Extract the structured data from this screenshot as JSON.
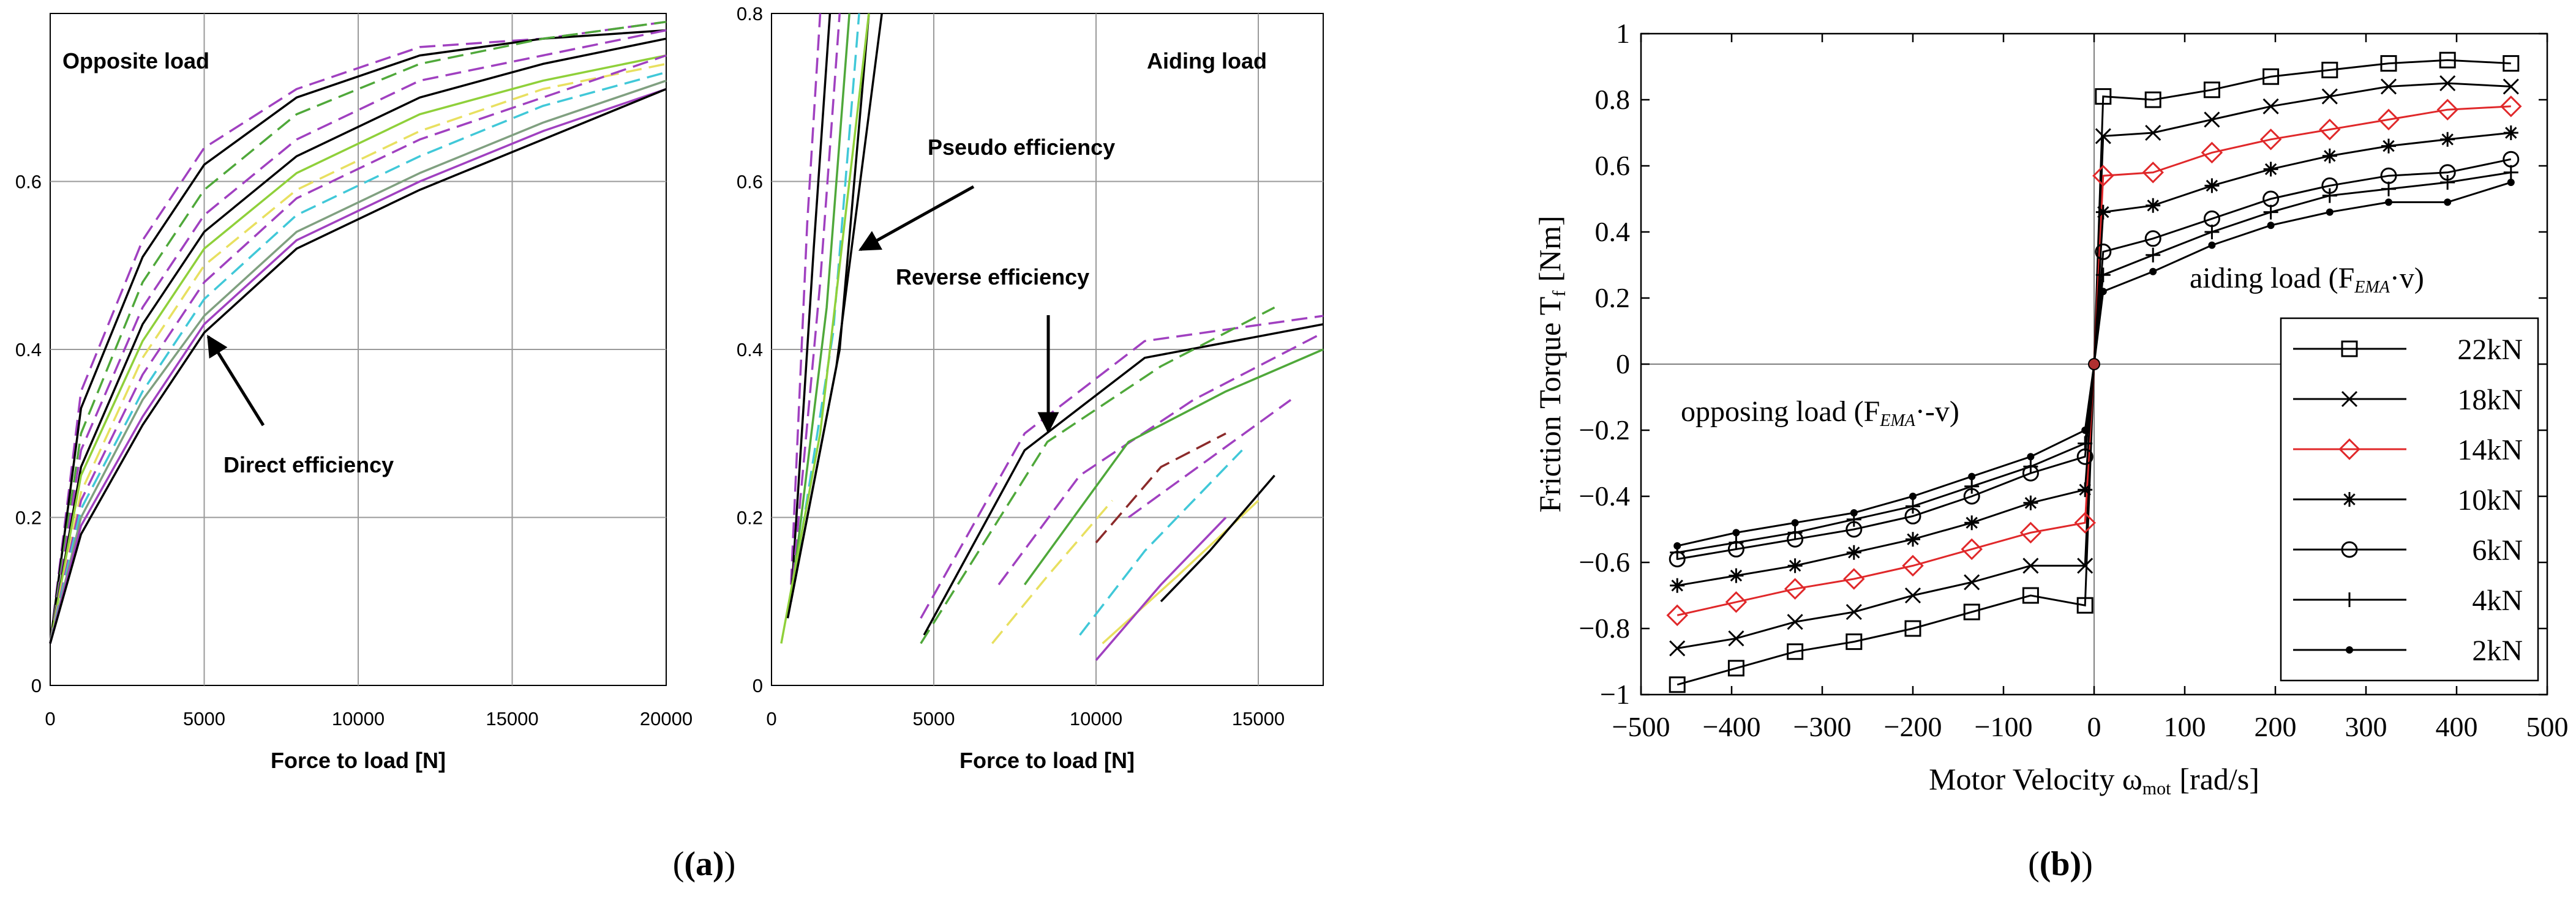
{
  "chart_data": [
    {
      "id": "a_left",
      "type": "line",
      "title": "Opposite load",
      "xlabel": "Force to load [N]",
      "ylabel": "",
      "xlim": [
        0,
        20000
      ],
      "ylim": [
        0,
        0.8
      ],
      "xticks": [
        0,
        5000,
        10000,
        15000,
        20000
      ],
      "xtick_labels": [
        "0",
        "5000",
        "10000",
        "15000",
        "20000"
      ],
      "yticks": [
        0,
        0.2,
        0.4,
        0.6
      ],
      "ytick_labels": [
        "0",
        "0.2",
        "0.4",
        "0.6"
      ],
      "grid": true,
      "annotations": [
        {
          "text": "Direct efficiency",
          "x": 5000,
          "y": 0.42
        }
      ],
      "series": [
        {
          "color": "#a040c0",
          "dash": "dashed",
          "x": [
            0,
            1000,
            3000,
            5000,
            8000,
            12000,
            16000,
            20000
          ],
          "y": [
            0.05,
            0.35,
            0.53,
            0.64,
            0.71,
            0.76,
            0.77,
            0.79
          ]
        },
        {
          "color": "#000000",
          "dash": "solid",
          "x": [
            0,
            1000,
            3000,
            5000,
            8000,
            12000,
            16000,
            20000
          ],
          "y": [
            0.05,
            0.33,
            0.51,
            0.62,
            0.7,
            0.75,
            0.77,
            0.78
          ]
        },
        {
          "color": "#4fa83a",
          "dash": "dashed",
          "x": [
            0,
            1000,
            3000,
            5000,
            8000,
            12000,
            16000,
            20000
          ],
          "y": [
            0.05,
            0.3,
            0.48,
            0.59,
            0.68,
            0.74,
            0.77,
            0.79
          ]
        },
        {
          "color": "#a040c0",
          "dash": "dashed",
          "x": [
            0,
            1000,
            3000,
            5000,
            8000,
            12000,
            16000,
            20000
          ],
          "y": [
            0.05,
            0.28,
            0.45,
            0.56,
            0.65,
            0.72,
            0.75,
            0.78
          ]
        },
        {
          "color": "#000000",
          "dash": "solid",
          "x": [
            0,
            1000,
            3000,
            5000,
            8000,
            12000,
            16000,
            20000
          ],
          "y": [
            0.05,
            0.26,
            0.43,
            0.54,
            0.63,
            0.7,
            0.74,
            0.77
          ]
        },
        {
          "color": "#8fd03a",
          "dash": "solid",
          "x": [
            0,
            1000,
            3000,
            5000,
            8000,
            12000,
            16000,
            20000
          ],
          "y": [
            0.05,
            0.25,
            0.41,
            0.52,
            0.61,
            0.68,
            0.72,
            0.75
          ]
        },
        {
          "color": "#e8e060",
          "dash": "dashed",
          "x": [
            0,
            1000,
            3000,
            5000,
            8000,
            12000,
            16000,
            20000
          ],
          "y": [
            0.05,
            0.23,
            0.39,
            0.5,
            0.59,
            0.66,
            0.71,
            0.74
          ]
        },
        {
          "color": "#a040c0",
          "dash": "dashed",
          "x": [
            0,
            1000,
            3000,
            5000,
            8000,
            12000,
            16000,
            20000
          ],
          "y": [
            0.05,
            0.22,
            0.37,
            0.48,
            0.58,
            0.65,
            0.7,
            0.75
          ]
        },
        {
          "color": "#40c8d8",
          "dash": "dashed",
          "x": [
            0,
            1000,
            3000,
            5000,
            8000,
            12000,
            16000,
            20000
          ],
          "y": [
            0.05,
            0.21,
            0.35,
            0.46,
            0.56,
            0.63,
            0.69,
            0.73
          ]
        },
        {
          "color": "#80a080",
          "dash": "solid",
          "x": [
            0,
            1000,
            3000,
            5000,
            8000,
            12000,
            16000,
            20000
          ],
          "y": [
            0.05,
            0.2,
            0.34,
            0.44,
            0.54,
            0.61,
            0.67,
            0.72
          ]
        },
        {
          "color": "#a040c0",
          "dash": "solid",
          "x": [
            0,
            1000,
            3000,
            5000,
            8000,
            12000,
            16000,
            20000
          ],
          "y": [
            0.05,
            0.19,
            0.32,
            0.43,
            0.53,
            0.6,
            0.66,
            0.71
          ]
        },
        {
          "color": "#000000",
          "dash": "solid",
          "x": [
            0,
            1000,
            3000,
            5000,
            8000,
            12000,
            16000,
            20000
          ],
          "y": [
            0.05,
            0.18,
            0.31,
            0.42,
            0.52,
            0.59,
            0.65,
            0.71
          ]
        }
      ]
    },
    {
      "id": "a_right",
      "type": "line",
      "title": "Aiding load",
      "xlabel": "Force to load [N]",
      "ylabel": "",
      "xlim": [
        0,
        17000
      ],
      "ylim": [
        0,
        0.8
      ],
      "xticks": [
        0,
        5000,
        10000,
        15000
      ],
      "xtick_labels": [
        "0",
        "5000",
        "10000",
        "15000"
      ],
      "yticks": [
        0,
        0.2,
        0.4,
        0.6,
        0.8
      ],
      "ytick_labels": [
        "0",
        "0.2",
        "0.4",
        "0.6",
        "0.8"
      ],
      "grid": true,
      "annotations": [
        {
          "text": "Pseudo efficiency",
          "x": 2400,
          "y": 0.52
        },
        {
          "text": "Reverse efficiency",
          "x": 7800,
          "y": 0.3
        }
      ],
      "series": [
        {
          "color": "#a040c0",
          "dash": "dashed",
          "x": [
            600,
            1100,
            1500
          ],
          "y": [
            0.12,
            0.55,
            0.8
          ]
        },
        {
          "color": "#000000",
          "dash": "solid",
          "x": [
            600,
            1300,
            1800
          ],
          "y": [
            0.1,
            0.52,
            0.8
          ]
        },
        {
          "color": "#a040c0",
          "dash": "dashed",
          "x": [
            600,
            1500,
            2100
          ],
          "y": [
            0.1,
            0.48,
            0.8
          ]
        },
        {
          "color": "#4fa83a",
          "dash": "solid",
          "x": [
            600,
            1700,
            2400
          ],
          "y": [
            0.1,
            0.45,
            0.8
          ]
        },
        {
          "color": "#40c8d8",
          "dash": "dashed",
          "x": [
            600,
            1900,
            2700
          ],
          "y": [
            0.1,
            0.42,
            0.8
          ]
        },
        {
          "color": "#000000",
          "dash": "solid",
          "x": [
            600,
            2100,
            3000
          ],
          "y": [
            0.1,
            0.4,
            0.8
          ]
        },
        {
          "color": "#8fd03a",
          "dash": "solid",
          "x": [
            300,
            1500,
            3000
          ],
          "y": [
            0.05,
            0.3,
            0.8
          ]
        },
        {
          "color": "#000000",
          "dash": "solid",
          "x": [
            500,
            2000,
            3400
          ],
          "y": [
            0.08,
            0.38,
            0.8
          ]
        },
        {
          "color": "#a040c0",
          "dash": "dashed",
          "x": [
            4600,
            7800,
            11500,
            17000
          ],
          "y": [
            0.08,
            0.3,
            0.41,
            0.44
          ]
        },
        {
          "color": "#000000",
          "dash": "solid",
          "x": [
            4700,
            7800,
            11500,
            17000
          ],
          "y": [
            0.06,
            0.28,
            0.39,
            0.43
          ]
        },
        {
          "color": "#4fa83a",
          "dash": "dashed",
          "x": [
            4600,
            8500,
            12000,
            15500
          ],
          "y": [
            0.05,
            0.29,
            0.38,
            0.45
          ]
        },
        {
          "color": "#a040c0",
          "dash": "dashed",
          "x": [
            7000,
            9500,
            13000,
            17000
          ],
          "y": [
            0.12,
            0.25,
            0.34,
            0.42
          ]
        },
        {
          "color": "#4fa83a",
          "dash": "solid",
          "x": [
            7800,
            11000,
            14000,
            17000
          ],
          "y": [
            0.12,
            0.29,
            0.35,
            0.4
          ]
        },
        {
          "color": "#e8e060",
          "dash": "dashed",
          "x": [
            6800,
            8500,
            10500
          ],
          "y": [
            0.05,
            0.13,
            0.22
          ]
        },
        {
          "color": "#8b2a2a",
          "dash": "dashed",
          "x": [
            10000,
            12000,
            14000
          ],
          "y": [
            0.17,
            0.26,
            0.3
          ]
        },
        {
          "color": "#40c8d8",
          "dash": "dashed",
          "x": [
            9500,
            11500,
            14500
          ],
          "y": [
            0.06,
            0.16,
            0.28
          ]
        },
        {
          "color": "#a040c0",
          "dash": "dashed",
          "x": [
            11000,
            13500,
            16000
          ],
          "y": [
            0.2,
            0.27,
            0.34
          ]
        },
        {
          "color": "#e8e060",
          "dash": "solid",
          "x": [
            10200,
            12500,
            15000
          ],
          "y": [
            0.05,
            0.13,
            0.22
          ]
        },
        {
          "color": "#a040c0",
          "dash": "solid",
          "x": [
            10000,
            12000,
            14000
          ],
          "y": [
            0.03,
            0.12,
            0.2
          ]
        },
        {
          "color": "#000000",
          "dash": "solid",
          "x": [
            12000,
            13500,
            15500
          ],
          "y": [
            0.1,
            0.16,
            0.25
          ]
        }
      ]
    },
    {
      "id": "b",
      "type": "line",
      "title": "",
      "xlabel": "Motor Velocity ω",
      "xlabel_sub": "mot",
      "xlabel_unit": "[rad/s]",
      "ylabel": "Friction Torque T",
      "ylabel_sub": "f",
      "ylabel_unit": "[Nm]",
      "xlim": [
        -500,
        500
      ],
      "ylim": [
        -1,
        1
      ],
      "xticks": [
        -500,
        -400,
        -300,
        -200,
        -100,
        0,
        100,
        200,
        300,
        400,
        500
      ],
      "xtick_labels": [
        "−500",
        "−400",
        "−300",
        "−200",
        "−100",
        "0",
        "100",
        "200",
        "300",
        "400",
        "500"
      ],
      "yticks": [
        -1,
        -0.8,
        -0.6,
        -0.4,
        -0.2,
        0,
        0.2,
        0.4,
        0.6,
        0.8,
        1
      ],
      "ytick_labels": [
        "−1",
        "−0.8",
        "−0.6",
        "−0.4",
        "−0.2",
        "0",
        "0.2",
        "0.4",
        "0.6",
        "0.8",
        "1"
      ],
      "grid": false,
      "legend_position": "bottom-right",
      "annotations": [
        {
          "text": "aiding load (F",
          "sub": "EMA",
          "tail": "·v)",
          "x": 210,
          "y": 0.25
        },
        {
          "text": "opposing load (F",
          "sub": "EMA",
          "tail": "·-v)",
          "x": -255,
          "y": -0.28
        }
      ],
      "x_pos": [
        10,
        65,
        130,
        195,
        260,
        325,
        390,
        460
      ],
      "x_neg": [
        -460,
        -395,
        -330,
        -265,
        -200,
        -135,
        -70,
        -10
      ],
      "series": [
        {
          "name": "22kN",
          "color": "#000000",
          "marker": "square",
          "pos": [
            0.81,
            0.8,
            0.83,
            0.87,
            0.89,
            0.91,
            0.92,
            0.91
          ],
          "neg": [
            -0.97,
            -0.92,
            -0.87,
            -0.84,
            -0.8,
            -0.75,
            -0.7,
            -0.73
          ]
        },
        {
          "name": "18kN",
          "color": "#000000",
          "marker": "x",
          "pos": [
            0.69,
            0.7,
            0.74,
            0.78,
            0.81,
            0.84,
            0.85,
            0.84
          ],
          "neg": [
            -0.86,
            -0.83,
            -0.78,
            -0.75,
            -0.7,
            -0.66,
            -0.61,
            -0.61
          ]
        },
        {
          "name": "14kN",
          "color": "#e0282a",
          "marker": "diamond",
          "pos": [
            0.57,
            0.58,
            0.64,
            0.68,
            0.71,
            0.74,
            0.77,
            0.78
          ],
          "neg": [
            -0.76,
            -0.72,
            -0.68,
            -0.65,
            -0.61,
            -0.56,
            -0.51,
            -0.48
          ]
        },
        {
          "name": "10kN",
          "color": "#000000",
          "marker": "asterisk",
          "pos": [
            0.46,
            0.48,
            0.54,
            0.59,
            0.63,
            0.66,
            0.68,
            0.7
          ],
          "neg": [
            -0.67,
            -0.64,
            -0.61,
            -0.57,
            -0.53,
            -0.48,
            -0.42,
            -0.38
          ]
        },
        {
          "name": "6kN",
          "color": "#000000",
          "marker": "circle",
          "pos": [
            0.34,
            0.38,
            0.44,
            0.5,
            0.54,
            0.57,
            0.58,
            0.62
          ],
          "neg": [
            -0.59,
            -0.56,
            -0.53,
            -0.5,
            -0.46,
            -0.4,
            -0.33,
            -0.28
          ]
        },
        {
          "name": "4kN",
          "color": "#000000",
          "marker": "plus",
          "pos": [
            0.27,
            0.33,
            0.4,
            0.46,
            0.51,
            0.53,
            0.55,
            0.58
          ],
          "neg": [
            -0.57,
            -0.54,
            -0.51,
            -0.47,
            -0.43,
            -0.37,
            -0.31,
            -0.24
          ]
        },
        {
          "name": "2kN",
          "color": "#000000",
          "marker": "dot",
          "pos": [
            0.22,
            0.28,
            0.36,
            0.42,
            0.46,
            0.49,
            0.49,
            0.55
          ],
          "neg": [
            -0.55,
            -0.51,
            -0.48,
            -0.45,
            -0.4,
            -0.34,
            -0.28,
            -0.2
          ]
        }
      ]
    }
  ],
  "captions": {
    "a": "(a)",
    "b": "(b)"
  }
}
